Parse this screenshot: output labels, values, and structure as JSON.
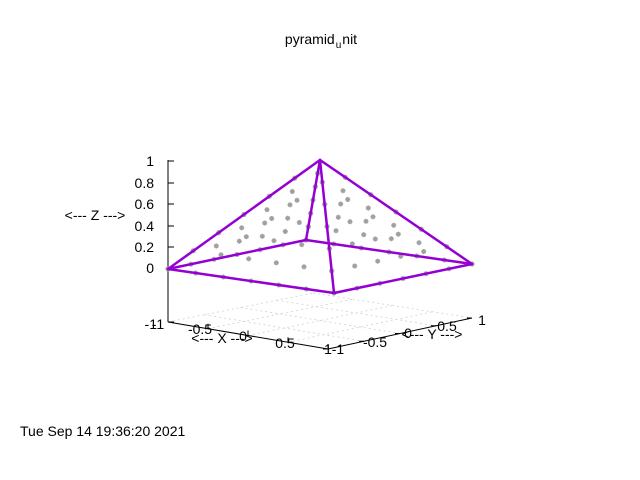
{
  "chart_data": {
    "type": "surface3d",
    "title": "pyramid",
    "title_subscript": "u",
    "title_tail": "nit",
    "xlabel": "<--- X --->",
    "ylabel": "<--- Y --->",
    "zlabel": "<--- Z --->",
    "xlim": [
      -1,
      1
    ],
    "ylim": [
      -1,
      1
    ],
    "zlim": [
      -1,
      1
    ],
    "x_ticks": [
      "-1",
      "-0.5",
      "0",
      "0.5",
      "1"
    ],
    "y_ticks": [
      "-1",
      "-0.5",
      "0",
      "0.5",
      "1"
    ],
    "z_ticks": [
      "-1",
      "0",
      "0.2",
      "0.4",
      "0.6",
      "0.8",
      "1"
    ],
    "grid": true,
    "edge_color": "#9400d3",
    "point_color": "#a0a0a0",
    "apex": [
      0,
      0,
      1
    ],
    "base": [
      [
        1,
        0,
        0
      ],
      [
        0,
        1,
        0
      ],
      [
        -1,
        0,
        0
      ],
      [
        0,
        -1,
        0
      ]
    ],
    "timestamp": "Tue Sep 14 19:36:20 2021"
  }
}
